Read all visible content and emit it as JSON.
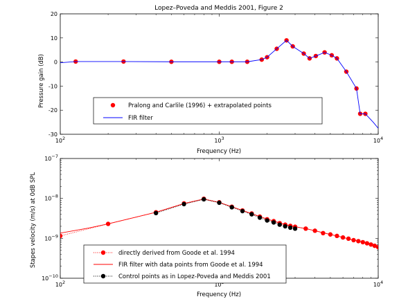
{
  "chart_data": [
    {
      "type": "line",
      "title": "Lopez–Poveda and Meddis 2001, Figure 2",
      "xlabel": "Frequency (Hz)",
      "ylabel": "Pressure gain (dB)",
      "xscale": "log",
      "xlim": [
        100,
        10000
      ],
      "ylim": [
        -30,
        20
      ],
      "xticks": [
        {
          "value": 100,
          "base": "10",
          "exp": "2"
        },
        {
          "value": 1000,
          "base": "10",
          "exp": "3"
        },
        {
          "value": 10000,
          "base": "10",
          "exp": "4"
        }
      ],
      "yticks": [
        -30,
        -20,
        -10,
        0,
        10,
        20
      ],
      "legend_position": "bottom-center",
      "series": [
        {
          "name": "Pralong and Carlile (1996) + extrapolated points",
          "color": "#ff0000",
          "style": "markers",
          "points": [
            [
              125,
              0.2
            ],
            [
              250,
              0.2
            ],
            [
              500,
              0.1
            ],
            [
              1000,
              0.1
            ],
            [
              1200,
              0.1
            ],
            [
              1500,
              0.1
            ],
            [
              1850,
              1.0
            ],
            [
              2000,
              2.0
            ],
            [
              2300,
              5.5
            ],
            [
              2650,
              9.0
            ],
            [
              2900,
              6.5
            ],
            [
              3400,
              3.5
            ],
            [
              3700,
              1.5
            ],
            [
              4050,
              2.5
            ],
            [
              4600,
              4.0
            ],
            [
              5100,
              2.8
            ],
            [
              5500,
              1.5
            ],
            [
              6300,
              -4.0
            ],
            [
              7300,
              -11.0
            ],
            [
              7700,
              -21.5
            ],
            [
              8300,
              -21.5
            ]
          ]
        },
        {
          "name": "FIR filter",
          "color": "#0000ff",
          "style": "line",
          "points": [
            [
              100,
              -0.3
            ],
            [
              125,
              0.2
            ],
            [
              250,
              0.2
            ],
            [
              500,
              0.1
            ],
            [
              1000,
              0.1
            ],
            [
              1200,
              0.1
            ],
            [
              1500,
              0.1
            ],
            [
              1850,
              1.0
            ],
            [
              2000,
              2.0
            ],
            [
              2300,
              5.5
            ],
            [
              2650,
              9.0
            ],
            [
              2900,
              6.5
            ],
            [
              3400,
              3.5
            ],
            [
              3700,
              1.5
            ],
            [
              4050,
              2.5
            ],
            [
              4600,
              4.0
            ],
            [
              5100,
              2.8
            ],
            [
              5500,
              1.5
            ],
            [
              6300,
              -4.0
            ],
            [
              7300,
              -11.0
            ],
            [
              7700,
              -21.5
            ],
            [
              8300,
              -21.5
            ],
            [
              9300,
              -25.0
            ],
            [
              10000,
              -27.5
            ]
          ]
        }
      ]
    },
    {
      "type": "line",
      "xlabel": "Frequency (Hz)",
      "ylabel": "Stapes velocity (m/s) at 0dB SPL",
      "xscale": "log",
      "yscale": "log",
      "xlim": [
        100,
        10000
      ],
      "ylim": [
        1e-10,
        1e-07
      ],
      "xticks": [
        {
          "value": 100,
          "base": "10",
          "exp": "2"
        },
        {
          "value": 1000,
          "base": "10",
          "exp": "3"
        },
        {
          "value": 10000,
          "base": "10",
          "exp": "4"
        }
      ],
      "yticks": [
        {
          "value": 1e-10,
          "base": "10",
          "exp": "−10"
        },
        {
          "value": 1e-09,
          "base": "10",
          "exp": "−9"
        },
        {
          "value": 1e-08,
          "base": "10",
          "exp": "−8"
        },
        {
          "value": 1e-07,
          "base": "10",
          "exp": "−7"
        }
      ],
      "legend_position": "bottom-center",
      "series": [
        {
          "name": "directly derived from Goode et al. 1994",
          "color": "#ff0000",
          "style": "dotted-markers",
          "points": [
            [
              100,
              1.15e-09
            ],
            [
              200,
              2.3e-09
            ],
            [
              400,
              4.5e-09
            ],
            [
              600,
              7.5e-09
            ],
            [
              800,
              9.8e-09
            ],
            [
              1000,
              8e-09
            ],
            [
              1200,
              6.2e-09
            ],
            [
              1400,
              5e-09
            ],
            [
              1600,
              4.2e-09
            ],
            [
              1800,
              3.5e-09
            ],
            [
              2000,
              3e-09
            ],
            [
              2200,
              2.7e-09
            ],
            [
              2400,
              2.4e-09
            ],
            [
              2600,
              2.2e-09
            ],
            [
              2800,
              2.05e-09
            ],
            [
              3000,
              1.95e-09
            ],
            [
              3500,
              1.75e-09
            ],
            [
              4000,
              1.55e-09
            ],
            [
              4500,
              1.35e-09
            ],
            [
              5000,
              1.25e-09
            ],
            [
              5500,
              1.15e-09
            ],
            [
              6000,
              1.05e-09
            ],
            [
              6500,
              9.8e-10
            ],
            [
              7000,
              9e-10
            ],
            [
              7500,
              8.5e-10
            ],
            [
              8000,
              8e-10
            ],
            [
              8500,
              7.5e-10
            ],
            [
              9000,
              7e-10
            ],
            [
              9500,
              6.5e-10
            ],
            [
              10000,
              6e-10
            ]
          ]
        },
        {
          "name": "FIR filter with data points from Goode et al. 1994",
          "color": "#ff0000",
          "style": "line",
          "points": [
            [
              100,
              1.35e-09
            ],
            [
              150,
              1.8e-09
            ],
            [
              200,
              2.3e-09
            ],
            [
              400,
              4.5e-09
            ],
            [
              600,
              7.4e-09
            ],
            [
              800,
              9.6e-09
            ],
            [
              1000,
              7.9e-09
            ],
            [
              1200,
              6.2e-09
            ],
            [
              1400,
              5e-09
            ],
            [
              1800,
              3.5e-09
            ],
            [
              2200,
              2.7e-09
            ],
            [
              2600,
              2.2e-09
            ],
            [
              3000,
              1.95e-09
            ],
            [
              3500,
              1.75e-09
            ],
            [
              4000,
              1.55e-09
            ],
            [
              5000,
              1.25e-09
            ],
            [
              6000,
              1.05e-09
            ],
            [
              7000,
              9e-10
            ],
            [
              8000,
              8e-10
            ],
            [
              9000,
              7e-10
            ],
            [
              10000,
              6e-10
            ]
          ]
        },
        {
          "name": "Control points as in Lopez-Poveda and Meddis 2001",
          "color": "#000000",
          "style": "dotted-markers",
          "points": [
            [
              400,
              4.3e-09
            ],
            [
              600,
              7.2e-09
            ],
            [
              800,
              9.5e-09
            ],
            [
              1000,
              7.8e-09
            ],
            [
              1200,
              6e-09
            ],
            [
              1400,
              4.8e-09
            ],
            [
              1600,
              4e-09
            ],
            [
              1800,
              3.3e-09
            ],
            [
              2000,
              2.8e-09
            ],
            [
              2200,
              2.5e-09
            ],
            [
              2400,
              2.2e-09
            ],
            [
              2600,
              2e-09
            ],
            [
              2800,
              1.85e-09
            ],
            [
              3000,
              1.75e-09
            ]
          ]
        }
      ]
    }
  ]
}
